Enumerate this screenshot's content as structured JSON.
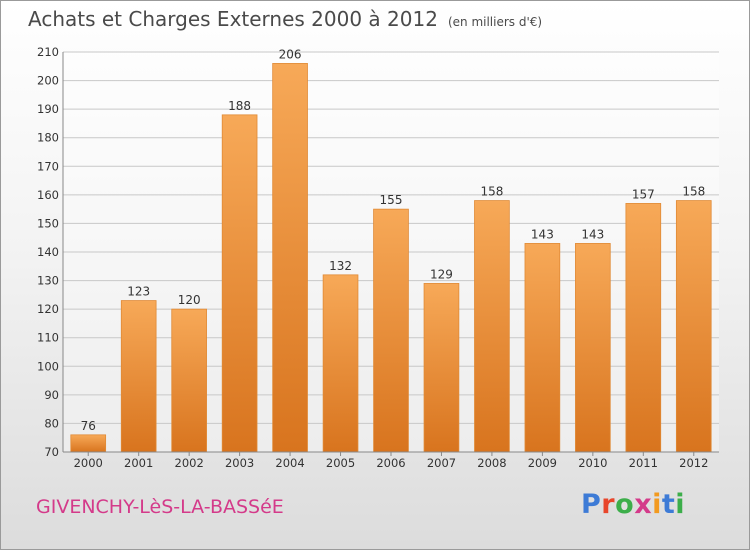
{
  "header": {
    "title": "Achats et Charges Externes 2000 à 2012",
    "unit": "(en milliers d'€)"
  },
  "footer": {
    "commune": "GIVENCHY-LèS-LA-BASSéE",
    "brand": "Proxiti",
    "brand_colors": [
      "#3d7bd6",
      "#e8462b",
      "#3cae4a",
      "#d43a8a",
      "#f29a1f",
      "#3d7bd6",
      "#3cae4a"
    ]
  },
  "chart_data": {
    "type": "bar",
    "categories": [
      "2000",
      "2001",
      "2002",
      "2003",
      "2004",
      "2005",
      "2006",
      "2007",
      "2008",
      "2009",
      "2010",
      "2011",
      "2012"
    ],
    "values": [
      76,
      123,
      120,
      188,
      206,
      132,
      155,
      129,
      158,
      143,
      143,
      157,
      158
    ],
    "ylim": [
      70,
      210
    ],
    "yticks": [
      70,
      80,
      90,
      100,
      110,
      120,
      130,
      140,
      150,
      160,
      170,
      180,
      190,
      200,
      210
    ],
    "grid": true,
    "bar_color": "#f0973f",
    "bar_color_light": "#f7a958",
    "bar_color_dark": "#d8741e"
  }
}
